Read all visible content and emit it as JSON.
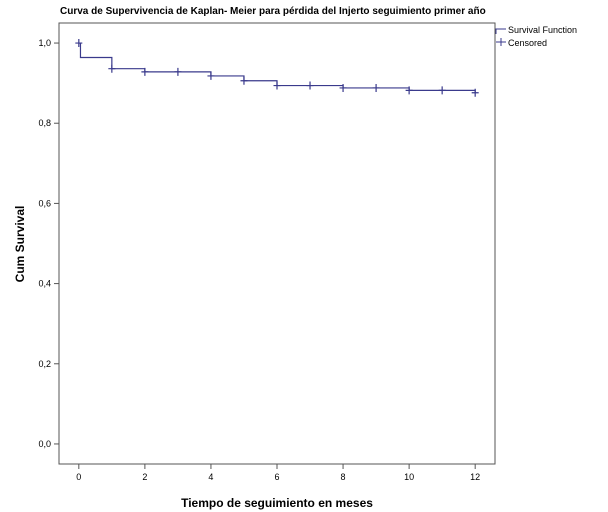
{
  "chart_data": {
    "type": "line",
    "title": "Curva de Supervivencia de Kaplan- Meier para pérdida del Injerto seguimiento primer año",
    "xlabel": "Tiempo de seguimiento en meses",
    "ylabel": "Cum Survival",
    "xlim": [
      -0.6,
      12.6
    ],
    "ylim": [
      -0.05,
      1.05
    ],
    "xticks": [
      0,
      2,
      4,
      6,
      8,
      10,
      12
    ],
    "xtick_labels": [
      "0",
      "2",
      "4",
      "6",
      "8",
      "10",
      "12"
    ],
    "yticks": [
      0.0,
      0.2,
      0.4,
      0.6,
      0.8,
      1.0
    ],
    "ytick_labels": [
      "0,0",
      "0,2",
      "0,4",
      "0,6",
      "0,8",
      "1,0"
    ],
    "grid": false,
    "legend_position": "top-right",
    "legend": [
      "Survival Function",
      "Censored"
    ],
    "series": [
      {
        "name": "Survival Function",
        "kind": "step",
        "color": "#3a3a8c",
        "x": [
          0,
          0.05,
          1,
          2,
          4,
          5,
          6,
          8,
          10,
          12
        ],
        "y": [
          1.0,
          0.964,
          0.936,
          0.928,
          0.918,
          0.906,
          0.894,
          0.888,
          0.882,
          0.876
        ]
      },
      {
        "name": "Censored",
        "kind": "marker",
        "color": "#3a3a8c",
        "x": [
          0,
          1,
          2,
          3,
          4,
          5,
          6,
          7,
          8,
          9,
          10,
          11,
          12
        ],
        "y": [
          1.0,
          0.936,
          0.928,
          0.928,
          0.918,
          0.906,
          0.894,
          0.894,
          0.888,
          0.888,
          0.882,
          0.882,
          0.876
        ]
      }
    ]
  }
}
